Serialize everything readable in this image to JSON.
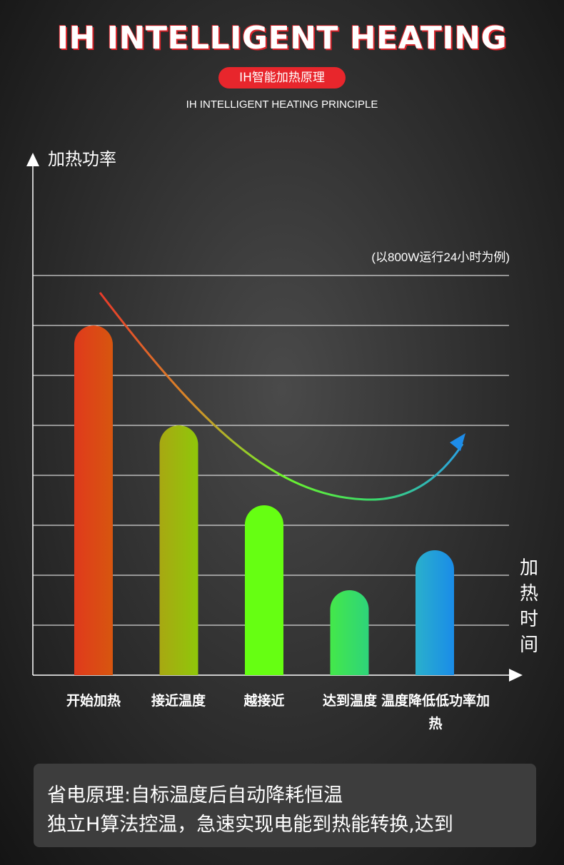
{
  "header": {
    "title": "IH INTELLIGENT HEATING",
    "pill": "IH智能加热原理",
    "subtitle": "IH INTELLIGENT HEATING PRINCIPLE"
  },
  "chart_data": {
    "type": "bar",
    "ylabel": "加热功率",
    "xlabel": "加热时间",
    "note": "(以800W运行24小时为例)",
    "categories": [
      "开始加热",
      "接近温度",
      "越接近",
      "达到温度",
      "温度降低低功率加热"
    ],
    "values": [
      7,
      5,
      3.4,
      1.7,
      2.5
    ],
    "ylim": [
      0,
      8
    ],
    "grid": true,
    "bar_colors": [
      [
        "#e03a1c",
        "#d7560f"
      ],
      [
        "#a8a812",
        "#8fc70a"
      ],
      [
        "#66ff12",
        "#66ff12"
      ],
      [
        "#44e84a",
        "#2ed47a"
      ],
      [
        "#2ab0cc",
        "#1a8ce8"
      ]
    ],
    "trend_curve": {
      "colors": [
        "#e83a2a",
        "#d88a28",
        "#6ef52a",
        "#3bd86a",
        "#2aa0e6"
      ]
    }
  },
  "footer": {
    "line1": "省电原理:自标温度后自动降耗恒温",
    "line2": "独立H算法控温，急速实现电能到热能转换,达到"
  }
}
